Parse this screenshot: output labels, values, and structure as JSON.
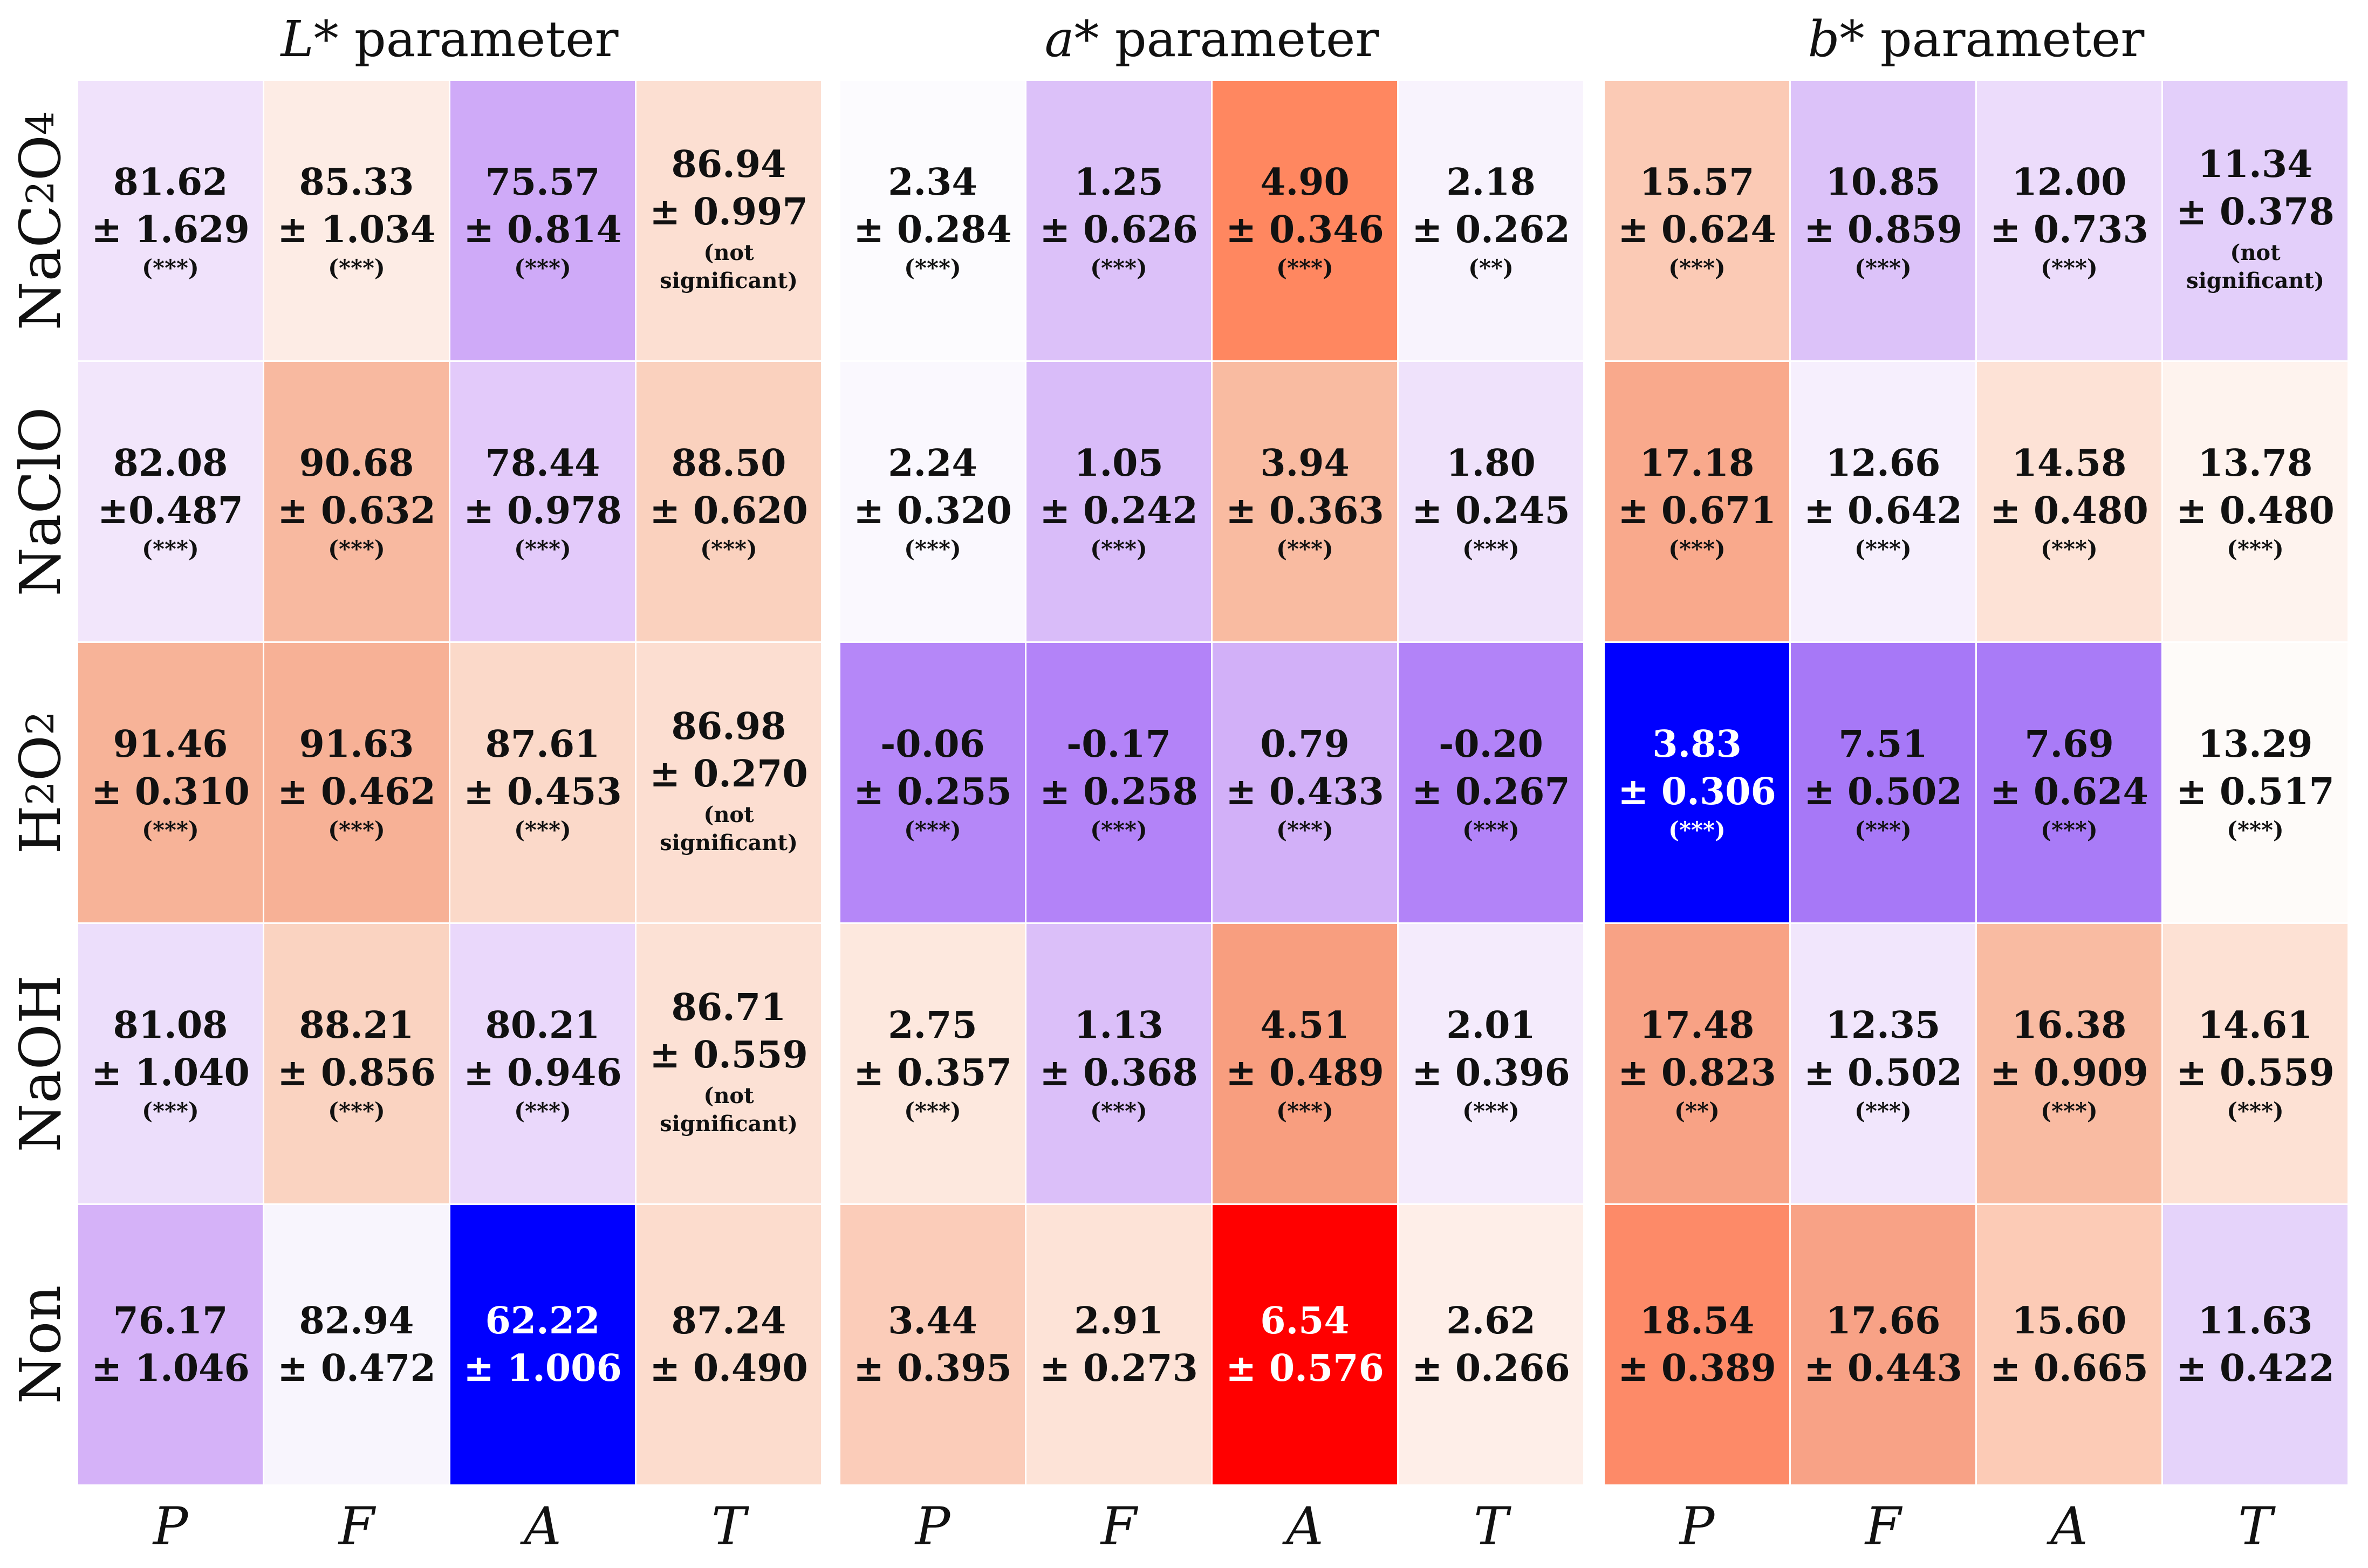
{
  "chart_data": {
    "type": "heatmap",
    "panels": [
      {
        "id": "L",
        "title_var": "L*",
        "title_rest": " parameter",
        "columns": [
          "P",
          "F",
          "A",
          "T"
        ],
        "cells": [
          [
            {
              "value": "81.62",
              "sd": "± 1.629",
              "sig": "(***)",
              "color": "#f0e2fb"
            },
            {
              "value": "85.33",
              "sd": "± 1.034",
              "sig": "(***)",
              "color": "#fdece5"
            },
            {
              "value": "75.57",
              "sd": "± 0.814",
              "sig": "(***)",
              "color": "#cfaaf8"
            },
            {
              "value": "86.94",
              "sd": "± 0.997",
              "sig": "(not significant)",
              "color": "#fcdfd2"
            }
          ],
          [
            {
              "value": "82.08",
              "sd": "±0.487",
              "sig": "(***)",
              "color": "#f2e6fb"
            },
            {
              "value": "90.68",
              "sd": "± 0.632",
              "sig": "(***)",
              "color": "#f8b9a0"
            },
            {
              "value": "78.44",
              "sd": "± 0.978",
              "sig": "(***)",
              "color": "#e3cafa"
            },
            {
              "value": "88.50",
              "sd": "± 0.620",
              "sig": "(***)",
              "color": "#fad1be"
            }
          ],
          [
            {
              "value": "91.46",
              "sd": "± 0.310",
              "sig": "(***)",
              "color": "#f7b398"
            },
            {
              "value": "91.63",
              "sd": "± 0.462",
              "sig": "(***)",
              "color": "#f7b196"
            },
            {
              "value": "87.61",
              "sd": "± 0.453",
              "sig": "(***)",
              "color": "#fbd9c9"
            },
            {
              "value": "86.98",
              "sd": "± 0.270",
              "sig": "(not significant)",
              "color": "#fcded1"
            }
          ],
          [
            {
              "value": "81.08",
              "sd": "± 1.040",
              "sig": "(***)",
              "color": "#ecdefb"
            },
            {
              "value": "88.21",
              "sd": "± 0.856",
              "sig": "(***)",
              "color": "#fad3c1"
            },
            {
              "value": "80.21",
              "sd": "± 0.946",
              "sig": "(***)",
              "color": "#ead8fb"
            },
            {
              "value": "86.71",
              "sd": "± 0.559",
              "sig": "(not significant)",
              "color": "#fce1d5"
            }
          ],
          [
            {
              "value": "76.17",
              "sd": "± 1.046",
              "sig": "",
              "color": "#d5b2f8"
            },
            {
              "value": "82.94",
              "sd": "± 0.472",
              "sig": "",
              "color": "#f8f5fd"
            },
            {
              "value": "62.22",
              "sd": "± 1.006",
              "sig": "",
              "color": "#0000ff"
            },
            {
              "value": "87.24",
              "sd": "± 0.490",
              "sig": "",
              "color": "#fcdccd"
            }
          ]
        ]
      },
      {
        "id": "a",
        "title_var": "a*",
        "title_rest": " parameter",
        "columns": [
          "P",
          "F",
          "A",
          "T"
        ],
        "cells": [
          [
            {
              "value": "2.34",
              "sd": "± 0.284",
              "sig": "(***)",
              "color": "#fcfbfe"
            },
            {
              "value": "1.25",
              "sd": "± 0.626",
              "sig": "(***)",
              "color": "#dcc1f9"
            },
            {
              "value": "4.90",
              "sd": "± 0.346",
              "sig": "(***)",
              "color": "#ff8760"
            },
            {
              "value": "2.18",
              "sd": "± 0.262",
              "sig": "(**)",
              "color": "#f8f3fd"
            }
          ],
          [
            {
              "value": "2.24",
              "sd": "± 0.320",
              "sig": "(***)",
              "color": "#faf8fe"
            },
            {
              "value": "1.05",
              "sd": "± 0.242",
              "sig": "(***)",
              "color": "#d9bcf9"
            },
            {
              "value": "3.94",
              "sd": "± 0.363",
              "sig": "(***)",
              "color": "#f9bba1"
            },
            {
              "value": "1.80",
              "sd": "± 0.245",
              "sig": "(***)",
              "color": "#efe2fb"
            }
          ],
          [
            {
              "value": "-0.06",
              "sd": "± 0.255",
              "sig": "(***)",
              "color": "#b587f8"
            },
            {
              "value": "-0.17",
              "sd": "± 0.258",
              "sig": "(***)",
              "color": "#b383f8"
            },
            {
              "value": "0.79",
              "sd": "± 0.433",
              "sig": "(***)",
              "color": "#d2b0f8"
            },
            {
              "value": "-0.20",
              "sd": "± 0.267",
              "sig": "(***)",
              "color": "#b283f8"
            }
          ],
          [
            {
              "value": "2.75",
              "sd": "± 0.357",
              "sig": "(***)",
              "color": "#fde8de"
            },
            {
              "value": "1.13",
              "sd": "± 0.368",
              "sig": "(***)",
              "color": "#dbbff9"
            },
            {
              "value": "4.51",
              "sd": "± 0.489",
              "sig": "(***)",
              "color": "#f89e7f"
            },
            {
              "value": "2.01",
              "sd": "± 0.396",
              "sig": "(***)",
              "color": "#f4ebfc"
            }
          ],
          [
            {
              "value": "3.44",
              "sd": "± 0.395",
              "sig": "",
              "color": "#fbccb9"
            },
            {
              "value": "2.91",
              "sd": "± 0.273",
              "sig": "",
              "color": "#fde3d7"
            },
            {
              "value": "6.54",
              "sd": "± 0.576",
              "sig": "",
              "color": "#ff0000"
            },
            {
              "value": "2.62",
              "sd": "± 0.266",
              "sig": "",
              "color": "#feeee8"
            }
          ]
        ]
      },
      {
        "id": "b",
        "title_var": "b*",
        "title_rest": " parameter",
        "columns": [
          "P",
          "F",
          "A",
          "T"
        ],
        "cells": [
          [
            {
              "value": "15.57",
              "sd": "± 0.624",
              "sig": "(***)",
              "color": "#fbcab5"
            },
            {
              "value": "10.85",
              "sd": "± 0.859",
              "sig": "(***)",
              "color": "#dcc2f9"
            },
            {
              "value": "12.00",
              "sd": "± 0.733",
              "sig": "(***)",
              "color": "#ecdcfb"
            },
            {
              "value": "11.34",
              "sd": "± 0.378",
              "sig": "(not significant)",
              "color": "#e3cffa"
            }
          ],
          [
            {
              "value": "17.18",
              "sd": "± 0.671",
              "sig": "(***)",
              "color": "#f9a98c"
            },
            {
              "value": "12.66",
              "sd": "± 0.642",
              "sig": "(***)",
              "color": "#f6effd"
            },
            {
              "value": "14.58",
              "sd": "± 0.480",
              "sig": "(***)",
              "color": "#fde2d6"
            },
            {
              "value": "13.78",
              "sd": "± 0.480",
              "sig": "(***)",
              "color": "#fef3ee"
            }
          ],
          [
            {
              "value": "3.83",
              "sd": "± 0.306",
              "sig": "(***)",
              "color": "#0000ff"
            },
            {
              "value": "7.51",
              "sd": "± 0.502",
              "sig": "(***)",
              "color": "#a778f7"
            },
            {
              "value": "7.69",
              "sd": "± 0.624",
              "sig": "(***)",
              "color": "#a97bf7"
            },
            {
              "value": "13.29",
              "sd": "± 0.517",
              "sig": "(***)",
              "color": "#fefbf9"
            }
          ],
          [
            {
              "value": "17.48",
              "sd": "± 0.823",
              "sig": "(**)",
              "color": "#f8a285"
            },
            {
              "value": "12.35",
              "sd": "± 0.502",
              "sig": "(***)",
              "color": "#f1e6fc"
            },
            {
              "value": "16.38",
              "sd": "± 0.909",
              "sig": "(***)",
              "color": "#f9bba2"
            },
            {
              "value": "14.61",
              "sd": "± 0.559",
              "sig": "(***)",
              "color": "#fde1d4"
            }
          ],
          [
            {
              "value": "18.54",
              "sd": "± 0.389",
              "sig": "",
              "color": "#fd8a68"
            },
            {
              "value": "17.66",
              "sd": "± 0.443",
              "sig": "",
              "color": "#f8a286"
            },
            {
              "value": "15.60",
              "sd": "± 0.665",
              "sig": "",
              "color": "#fccbb6"
            },
            {
              "value": "11.63",
              "sd": "± 0.422",
              "sig": "",
              "color": "#e5d3fa"
            }
          ]
        ]
      }
    ],
    "row_labels": [
      {
        "main": "NaC",
        "sub1": "2",
        "mid": "O",
        "sub2": "4"
      },
      {
        "main": "NaClO",
        "sub1": "",
        "mid": "",
        "sub2": ""
      },
      {
        "main": "H",
        "sub1": "2",
        "mid": "O",
        "sub2": "2"
      },
      {
        "main": "NaOH",
        "sub1": "",
        "mid": "",
        "sub2": ""
      },
      {
        "main": "Non",
        "sub1": "",
        "mid": "",
        "sub2": ""
      }
    ],
    "significance_note_prefix": "(not",
    "significance_note_suffix": "significant)"
  }
}
